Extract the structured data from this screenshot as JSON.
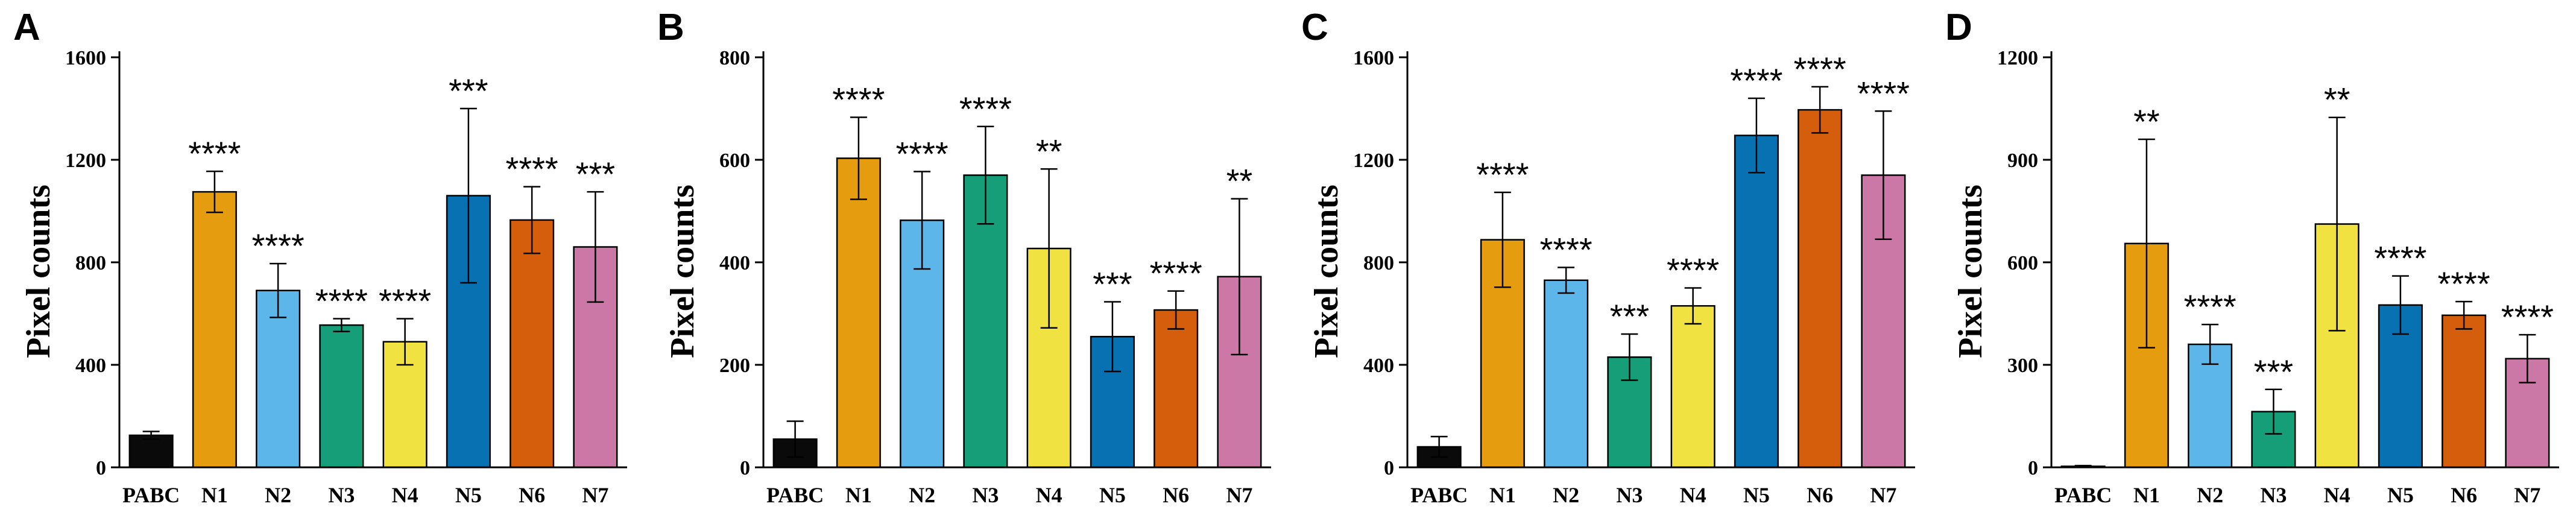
{
  "figure": {
    "colors": {
      "PABC": "#0a0a0a",
      "N1": "#e69c0f",
      "N2": "#5cb6e9",
      "N3": "#159e77",
      "N4": "#efe241",
      "N5": "#0871b2",
      "N6": "#d45e0b",
      "N7": "#cc78a7"
    }
  },
  "chart_data": [
    {
      "panel": "A",
      "type": "bar",
      "title": "",
      "xlabel": "",
      "ylabel": "Pixel counts",
      "ylim": [
        0,
        1600
      ],
      "yticks": [
        0,
        400,
        800,
        1200,
        1600
      ],
      "categories": [
        "PABC",
        "N1",
        "N2",
        "N3",
        "N4",
        "N5",
        "N6",
        "N7"
      ],
      "values": [
        125,
        1075,
        690,
        555,
        490,
        1060,
        965,
        860
      ],
      "errors": [
        15,
        80,
        105,
        25,
        90,
        340,
        130,
        215
      ],
      "significance": [
        "",
        "****",
        "****",
        "****",
        "****",
        "***",
        "****",
        "***"
      ]
    },
    {
      "panel": "B",
      "type": "bar",
      "title": "",
      "xlabel": "",
      "ylabel": "Pixel counts",
      "ylim": [
        0,
        800
      ],
      "yticks": [
        0,
        200,
        400,
        600,
        800
      ],
      "categories": [
        "PABC",
        "N1",
        "N2",
        "N3",
        "N4",
        "N5",
        "N6",
        "N7"
      ],
      "values": [
        55,
        603,
        482,
        570,
        427,
        255,
        307,
        372
      ],
      "errors": [
        35,
        80,
        95,
        95,
        155,
        68,
        37,
        152
      ],
      "significance": [
        "",
        "****",
        "****",
        "****",
        "**",
        "***",
        "****",
        "**"
      ]
    },
    {
      "panel": "C",
      "type": "bar",
      "title": "",
      "xlabel": "",
      "ylabel": "Pixel counts",
      "ylim": [
        0,
        1600
      ],
      "yticks": [
        0,
        400,
        800,
        1200,
        1600
      ],
      "categories": [
        "PABC",
        "N1",
        "N2",
        "N3",
        "N4",
        "N5",
        "N6",
        "N7"
      ],
      "values": [
        80,
        888,
        730,
        430,
        630,
        1295,
        1395,
        1140
      ],
      "errors": [
        40,
        185,
        50,
        90,
        70,
        145,
        90,
        250
      ],
      "significance": [
        "",
        "****",
        "****",
        "***",
        "****",
        "****",
        "****",
        "****"
      ]
    },
    {
      "panel": "D",
      "type": "bar",
      "title": "",
      "xlabel": "",
      "ylabel": "Pixel counts",
      "ylim": [
        0,
        1200
      ],
      "yticks": [
        0,
        300,
        600,
        900,
        1200
      ],
      "categories": [
        "PABC",
        "N1",
        "N2",
        "N3",
        "N4",
        "N5",
        "N6",
        "N7"
      ],
      "values": [
        3,
        655,
        360,
        163,
        712,
        475,
        445,
        318
      ],
      "errors": [
        2,
        305,
        58,
        65,
        312,
        85,
        40,
        70
      ],
      "significance": [
        "",
        "**",
        "****",
        "***",
        "**",
        "****",
        "****",
        "****"
      ]
    }
  ]
}
